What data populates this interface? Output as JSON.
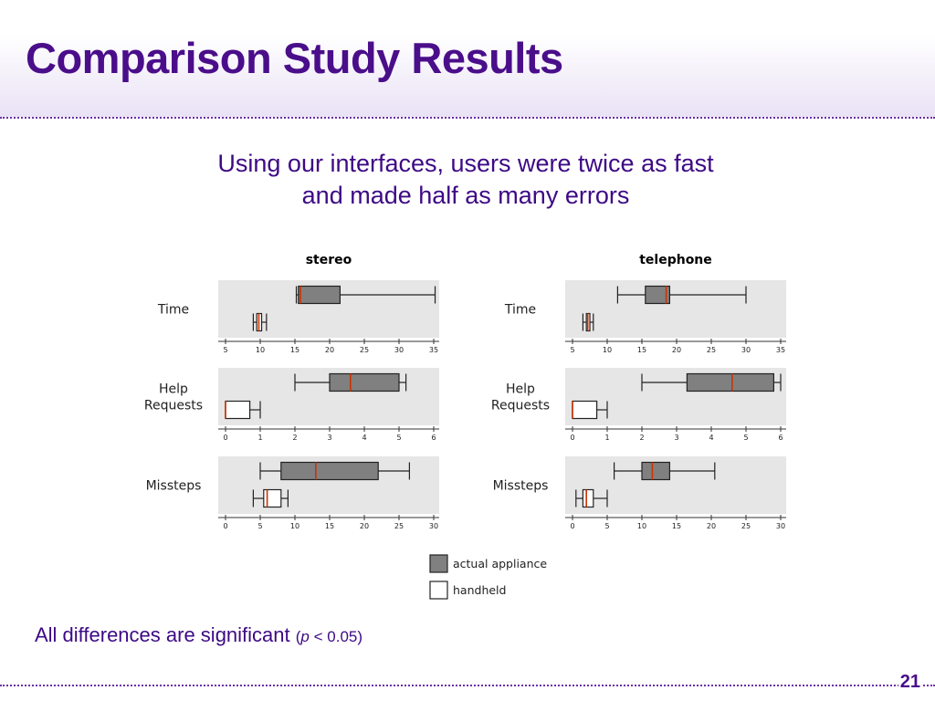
{
  "slide": {
    "title": "Comparison Study Results",
    "subtitle_line1": "Using our interfaces, users were twice as fast",
    "subtitle_line2": "and made half as many errors",
    "footnote_main": "All differences are significant ",
    "footnote_paren_open": "(",
    "footnote_p": "p",
    "footnote_rest": " < 0.05)",
    "page_number": "21",
    "colors": {
      "title": "#4a0e8a",
      "text": "#3d0a85",
      "dotted_rule": "#6a2ea8"
    }
  },
  "chart_data": {
    "type": "boxplot",
    "panels": [
      {
        "title": "stereo",
        "rows": [
          {
            "label": [
              "Time"
            ],
            "xlim": [
              5,
              35
            ],
            "ticks": [
              5,
              10,
              15,
              20,
              25,
              30,
              35
            ],
            "actual_appliance": {
              "whisker_low": 15.2,
              "q1": 15.5,
              "median": 15.8,
              "q3": 21.5,
              "whisker_high": 35.2
            },
            "handheld": {
              "whisker_low": 9,
              "q1": 9.5,
              "median": 9.8,
              "q3": 10.2,
              "whisker_high": 10.9
            }
          },
          {
            "label": [
              "Help",
              "Requests"
            ],
            "xlim": [
              0,
              6
            ],
            "ticks": [
              0,
              1,
              2,
              3,
              4,
              5,
              6
            ],
            "actual_appliance": {
              "whisker_low": 2,
              "q1": 3,
              "median": 3.6,
              "q3": 5,
              "whisker_high": 5.2
            },
            "handheld": {
              "whisker_low": 0,
              "q1": 0,
              "median": 0,
              "q3": 0.7,
              "whisker_high": 1
            }
          },
          {
            "label": [
              "Missteps"
            ],
            "xlim": [
              0,
              30
            ],
            "ticks": [
              0,
              5,
              10,
              15,
              20,
              25,
              30
            ],
            "actual_appliance": {
              "whisker_low": 5,
              "q1": 8,
              "median": 13,
              "q3": 22,
              "whisker_high": 26.5
            },
            "handheld": {
              "whisker_low": 4,
              "q1": 5.5,
              "median": 6,
              "q3": 8,
              "whisker_high": 9
            }
          }
        ]
      },
      {
        "title": "telephone",
        "rows": [
          {
            "label": [
              "Time"
            ],
            "xlim": [
              5,
              35
            ],
            "ticks": [
              5,
              10,
              15,
              20,
              25,
              30,
              35
            ],
            "actual_appliance": {
              "whisker_low": 11.5,
              "q1": 15.5,
              "median": 18.5,
              "q3": 19,
              "whisker_high": 30
            },
            "handheld": {
              "whisker_low": 6.5,
              "q1": 7,
              "median": 7.2,
              "q3": 7.5,
              "whisker_high": 8
            }
          },
          {
            "label": [
              "Help",
              "Requests"
            ],
            "xlim": [
              0,
              6
            ],
            "ticks": [
              0,
              1,
              2,
              3,
              4,
              5,
              6
            ],
            "actual_appliance": {
              "whisker_low": 2,
              "q1": 3.3,
              "median": 4.6,
              "q3": 5.8,
              "whisker_high": 6
            },
            "handheld": {
              "whisker_low": 0,
              "q1": 0,
              "median": 0,
              "q3": 0.7,
              "whisker_high": 1
            }
          },
          {
            "label": [
              "Missteps"
            ],
            "xlim": [
              0,
              30
            ],
            "ticks": [
              0,
              5,
              10,
              15,
              20,
              25,
              30
            ],
            "actual_appliance": {
              "whisker_low": 6,
              "q1": 10,
              "median": 11.5,
              "q3": 14,
              "whisker_high": 20.5
            },
            "handheld": {
              "whisker_low": 0.5,
              "q1": 1.5,
              "median": 2,
              "q3": 3,
              "whisker_high": 5
            }
          }
        ]
      }
    ],
    "legend": [
      {
        "name": "actual appliance",
        "color": "#808080"
      },
      {
        "name": "handheld",
        "color": "#ffffff"
      }
    ],
    "colors": {
      "plot_background": "#e6e6e6",
      "median": "#cc3300",
      "outline": "#222222"
    },
    "legend_position": "bottom"
  }
}
